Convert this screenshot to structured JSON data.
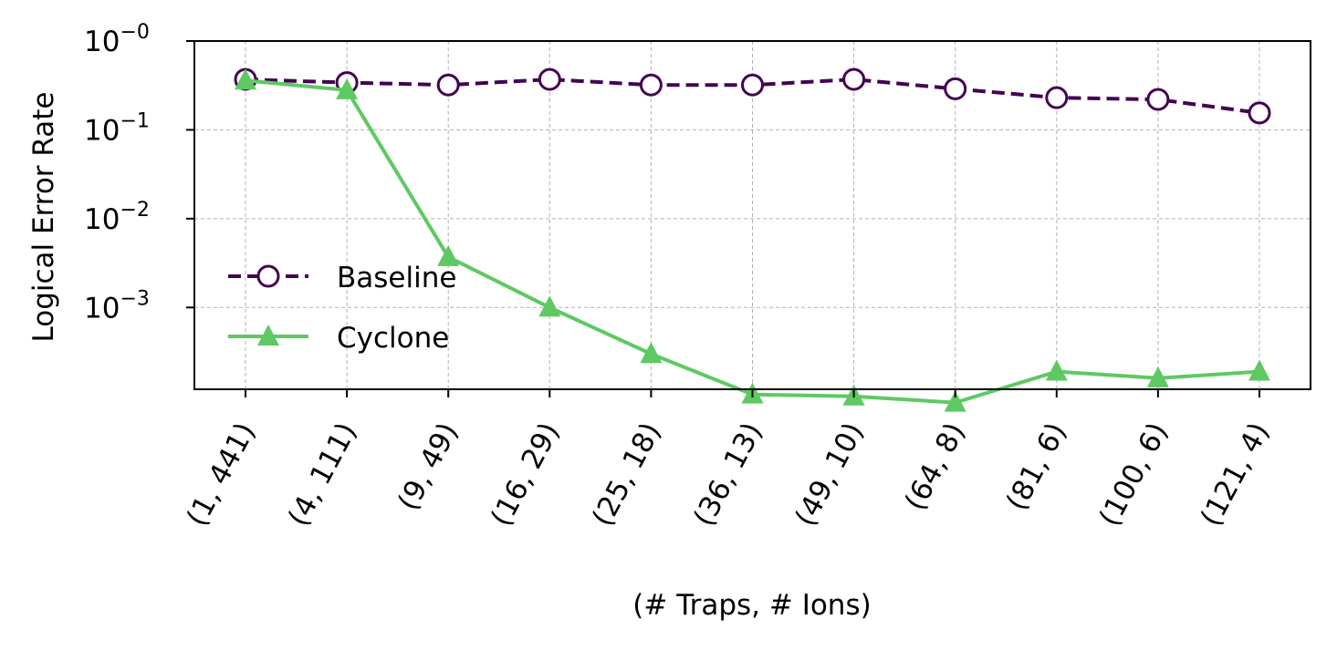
{
  "chart_data": {
    "type": "line",
    "xlabel": "(# Traps, # Ions)",
    "ylabel": "Logical Error Rate",
    "yscale": "log",
    "ylim": [
      0.00012,
      1
    ],
    "grid": true,
    "legend_position": "center-left",
    "categories": [
      "(1, 441)",
      "(4, 111)",
      "(9, 49)",
      "(16, 29)",
      "(25, 18)",
      "(36, 13)",
      "(49, 10)",
      "(64, 8)",
      "(81, 6)",
      "(100, 6)",
      "(121, 4)"
    ],
    "x": [
      1,
      4,
      9,
      16,
      25,
      36,
      49,
      64,
      81,
      100,
      121
    ],
    "yticks": [
      {
        "value": 1,
        "base": "10",
        "exp": "−0"
      },
      {
        "value": 0.1,
        "base": "10",
        "exp": "−1"
      },
      {
        "value": 0.01,
        "base": "10",
        "exp": "−2"
      },
      {
        "value": 0.001,
        "base": "10",
        "exp": "−3"
      }
    ],
    "series": [
      {
        "name": "Baseline",
        "color": "#440154",
        "style": "dashed",
        "marker": "open-circle",
        "values": [
          0.37,
          0.34,
          0.32,
          0.37,
          0.32,
          0.32,
          0.37,
          0.29,
          0.23,
          0.22,
          0.155
        ]
      },
      {
        "name": "Cyclone",
        "color": "#5ec962",
        "style": "solid",
        "marker": "filled-triangle",
        "values": [
          0.36,
          0.28,
          0.0037,
          0.001,
          0.0003,
          0.000105,
          0.0001,
          8.5e-05,
          0.00019,
          0.00016,
          0.00019
        ]
      }
    ]
  }
}
